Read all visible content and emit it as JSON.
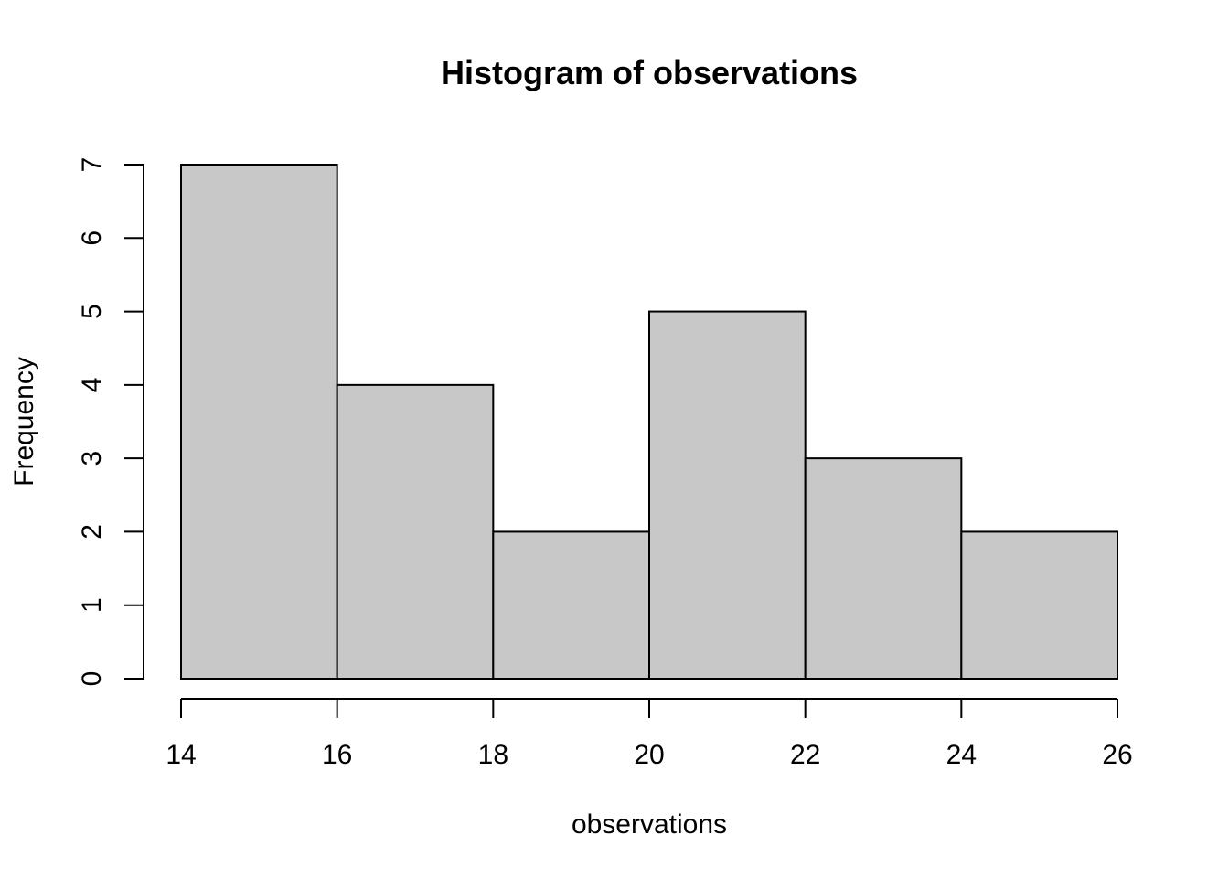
{
  "chart_data": {
    "type": "bar",
    "title": "Histogram of observations",
    "xlabel": "observations",
    "ylabel": "Frequency",
    "bin_edges": [
      14,
      16,
      18,
      20,
      22,
      24,
      26
    ],
    "values": [
      7,
      4,
      2,
      5,
      3,
      2
    ],
    "xlim": [
      14,
      26
    ],
    "ylim": [
      0,
      7
    ],
    "x_ticks": [
      "14",
      "16",
      "18",
      "20",
      "22",
      "24",
      "26"
    ],
    "y_ticks": [
      "0",
      "1",
      "2",
      "3",
      "4",
      "5",
      "6",
      "7"
    ],
    "grid": false,
    "legend": "none",
    "bar_color": "#c8c8c8",
    "border_color": "#000000"
  }
}
